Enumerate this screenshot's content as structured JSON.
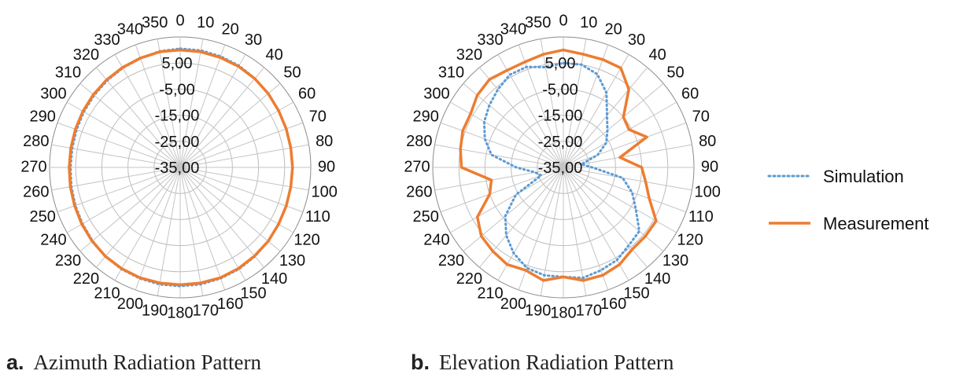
{
  "chart_data": [
    {
      "type": "radar",
      "angle_labels": [
        "0",
        "10",
        "20",
        "30",
        "40",
        "50",
        "60",
        "70",
        "80",
        "90",
        "100",
        "110",
        "120",
        "130",
        "140",
        "150",
        "160",
        "170",
        "180",
        "190",
        "200",
        "210",
        "220",
        "230",
        "240",
        "250",
        "260",
        "270",
        "280",
        "290",
        "300",
        "310",
        "320",
        "330",
        "340",
        "350"
      ],
      "radial_labels": [
        "-35,00",
        "-25,00",
        "-15,00",
        "-5,00",
        "5,00"
      ],
      "rlim": [
        -45,
        5
      ],
      "grid": true,
      "series": [
        {
          "name": "Simulation",
          "color": "#5b9bd5",
          "style": "dotted",
          "values": [
            0.5,
            0.5,
            0.3,
            0,
            -0.5,
            -1,
            -1.5,
            -1.8,
            -2,
            -2,
            -2,
            -1.8,
            -1.5,
            -1,
            -0.5,
            0,
            0.3,
            0.5,
            0.5,
            0.5,
            0.3,
            0,
            -0.5,
            -1.2,
            -1.8,
            -2.3,
            -2.7,
            -3,
            -3,
            -2.8,
            -2.4,
            -2,
            -1.5,
            -1,
            -0.5,
            0.2
          ]
        },
        {
          "name": "Measurement",
          "color": "#ed7d31",
          "style": "solid",
          "values": [
            0,
            0,
            -0.2,
            -0.3,
            -0.6,
            -1,
            -1.5,
            -1.8,
            -2,
            -2,
            -2,
            -1.8,
            -1.5,
            -1,
            -0.7,
            -0.3,
            0,
            0,
            0,
            0,
            0,
            -0.2,
            -0.5,
            -1,
            -1.5,
            -2,
            -2.3,
            -2.5,
            -2.5,
            -2.3,
            -2,
            -1.6,
            -1.2,
            -0.8,
            -0.4,
            0
          ]
        }
      ]
    },
    {
      "type": "radar",
      "angle_labels": [
        "0",
        "10",
        "20",
        "30",
        "40",
        "50",
        "60",
        "70",
        "80",
        "90",
        "100",
        "110",
        "120",
        "130",
        "140",
        "150",
        "160",
        "170",
        "180",
        "190",
        "200",
        "210",
        "220",
        "230",
        "240",
        "250",
        "260",
        "270",
        "280",
        "290",
        "300",
        "310",
        "320",
        "330",
        "340",
        "350"
      ],
      "radial_labels": [
        "-35,00",
        "-25,00",
        "-15,00",
        "-5,00",
        "5,00"
      ],
      "rlim": [
        -45,
        5
      ],
      "grid": true,
      "series": [
        {
          "name": "Simulation",
          "color": "#5b9bd5",
          "style": "dotted",
          "values": [
            -5,
            -5,
            -7,
            -12,
            -19,
            -23,
            -26,
            -31,
            -38,
            -34,
            -22,
            -17,
            -13,
            -7,
            -6,
            -4,
            -3,
            -2,
            -3,
            -3,
            -4,
            -7,
            -11,
            -16,
            -24,
            -36,
            -34,
            -27,
            -17,
            -13,
            -10,
            -8,
            -6,
            -4,
            -4,
            -6
          ]
        },
        {
          "name": "Measurement",
          "color": "#ed7d31",
          "style": "solid",
          "values": [
            0,
            -1,
            -1,
            -1,
            -6,
            -15,
            -16,
            -11,
            -23,
            -15,
            -13,
            -10,
            -4,
            -4,
            -4,
            -2,
            -1,
            -1,
            -3,
            -1,
            -3,
            -2,
            -3,
            -4,
            -7,
            -15,
            -17,
            -6,
            -5,
            -4,
            -4,
            -2,
            -1,
            -2,
            -2,
            -1
          ]
        }
      ]
    }
  ],
  "captions": [
    {
      "letter": "a.",
      "text": "Azimuth Radiation Pattern"
    },
    {
      "letter": "b.",
      "text": "Elevation Radiation Pattern"
    }
  ]
}
